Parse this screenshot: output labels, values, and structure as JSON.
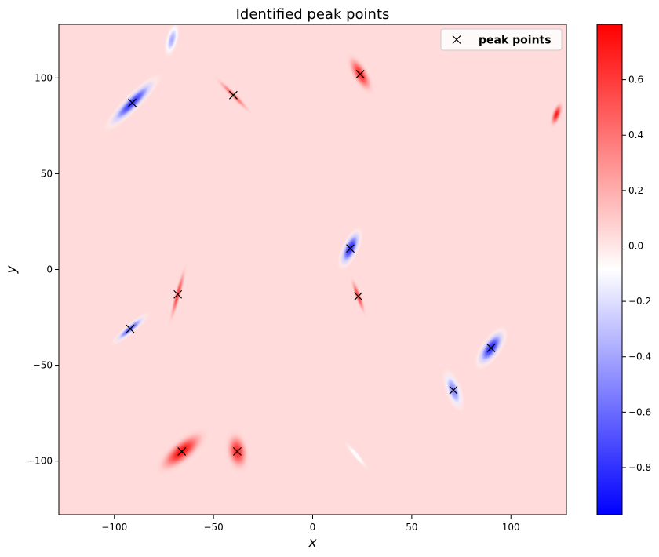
{
  "chart_data": {
    "type": "heatmap",
    "title": "Identified peak points",
    "xlabel": "x",
    "ylabel": "y",
    "xlim": [
      -128,
      128
    ],
    "ylim": [
      -128,
      128
    ],
    "xticks": [
      -100,
      -50,
      0,
      50,
      100
    ],
    "yticks": [
      -100,
      -50,
      0,
      50,
      100
    ],
    "xtick_labels": [
      "−100",
      "−50",
      "0",
      "50",
      "100"
    ],
    "ytick_labels": [
      "−100",
      "−50",
      "0",
      "50",
      "100"
    ],
    "grid": false,
    "background_value": 0.04,
    "colormap": "bwr",
    "colorbar": {
      "vmin": -0.97,
      "vmax": 0.8,
      "ticks": [
        -0.8,
        -0.6,
        -0.4,
        -0.2,
        0.0,
        0.2,
        0.4,
        0.6
      ],
      "tick_labels": [
        "−0.8",
        "−0.6",
        "−0.4",
        "−0.2",
        "0.0",
        "0.2",
        "0.4",
        "0.6"
      ]
    },
    "blobs": [
      {
        "x": -91,
        "y": 87,
        "value": -0.85,
        "sigma_major": 22,
        "sigma_minor": 5,
        "angle": 45
      },
      {
        "x": -71,
        "y": 120,
        "value": -0.4,
        "sigma_major": 11,
        "sigma_minor": 4,
        "angle": 75
      },
      {
        "x": -40,
        "y": 91,
        "value": 0.5,
        "sigma_major": 15,
        "sigma_minor": 2,
        "angle": -45
      },
      {
        "x": 24,
        "y": 102,
        "value": 0.7,
        "sigma_major": 13,
        "sigma_minor": 5,
        "angle": -60
      },
      {
        "x": 123,
        "y": 81,
        "value": 0.75,
        "sigma_major": 8,
        "sigma_minor": 3,
        "angle": 70
      },
      {
        "x": 19,
        "y": 11,
        "value": -0.9,
        "sigma_major": 13,
        "sigma_minor": 5,
        "angle": 65
      },
      {
        "x": 23,
        "y": -14,
        "value": 0.6,
        "sigma_major": 12,
        "sigma_minor": 2,
        "angle": -70
      },
      {
        "x": -68,
        "y": -13,
        "value": 0.6,
        "sigma_major": 18,
        "sigma_minor": 2,
        "angle": 75
      },
      {
        "x": -92,
        "y": -31,
        "value": -0.7,
        "sigma_major": 14,
        "sigma_minor": 3,
        "angle": 40
      },
      {
        "x": 90,
        "y": -41,
        "value": -0.9,
        "sigma_major": 14,
        "sigma_minor": 6,
        "angle": 55
      },
      {
        "x": 71,
        "y": -63,
        "value": -0.55,
        "sigma_major": 13,
        "sigma_minor": 5,
        "angle": -70
      },
      {
        "x": -66,
        "y": -95,
        "value": 0.8,
        "sigma_major": 18,
        "sigma_minor": 7,
        "angle": 40
      },
      {
        "x": -38,
        "y": -95,
        "value": 0.7,
        "sigma_major": 12,
        "sigma_minor": 7,
        "angle": -80
      },
      {
        "x": 22,
        "y": -97,
        "value": -0.12,
        "sigma_major": 12,
        "sigma_minor": 2,
        "angle": -50
      }
    ],
    "series": [
      {
        "name": "peak points",
        "marker": "x",
        "color": "#000000",
        "x": [
          -91,
          -40,
          24,
          19,
          23,
          -68,
          -92,
          90,
          71,
          -66,
          -38
        ],
        "y": [
          87,
          91,
          102,
          11,
          -14,
          -13,
          -31,
          -41,
          -63,
          -95,
          -95
        ]
      }
    ],
    "legend_position": "top-right"
  }
}
